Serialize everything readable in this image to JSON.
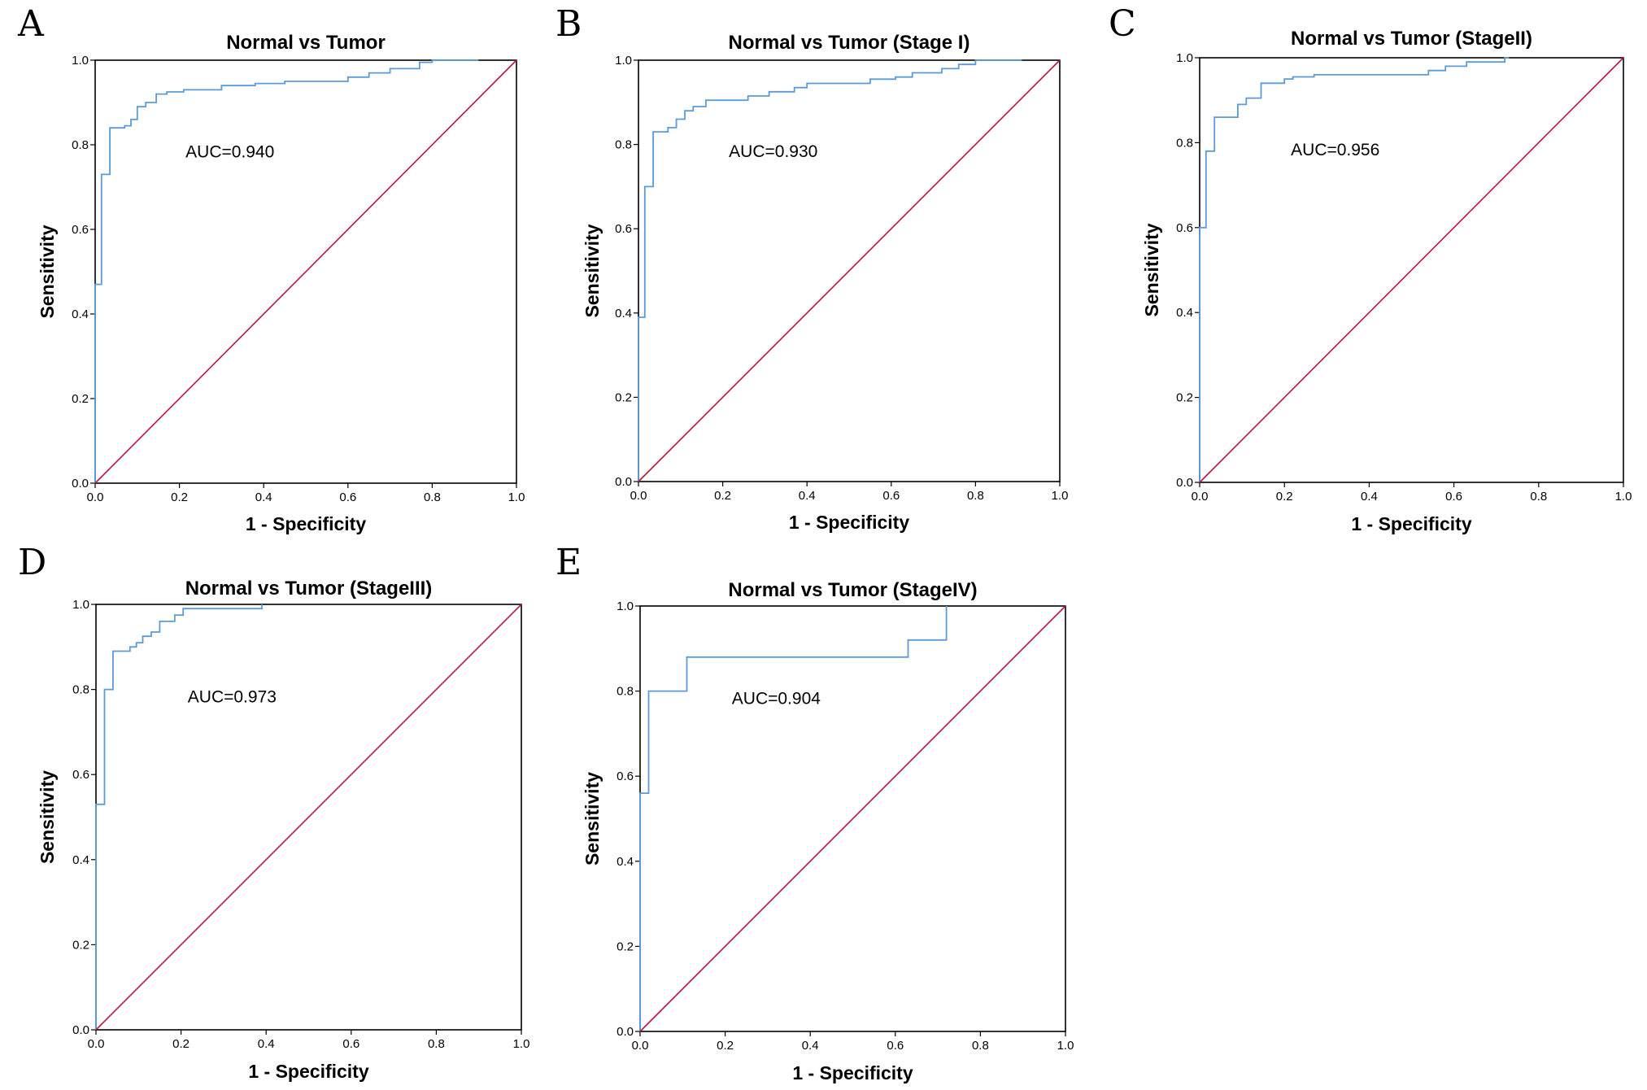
{
  "colors": {
    "roc": "#5b9bd5",
    "reference": "#c0143c",
    "frame": "#000000",
    "background": "#ffffff"
  },
  "chart_data": [
    {
      "panel": "A",
      "type": "line",
      "title": "Normal vs Tumor",
      "xlabel": "1 - Specificity",
      "ylabel": "Sensitivity",
      "xlim": [
        0,
        1
      ],
      "ylim": [
        0,
        1
      ],
      "xticks": [
        "0.0",
        "0.2",
        "0.4",
        "0.6",
        "0.8",
        "1.0"
      ],
      "yticks": [
        "0.0",
        "0.2",
        "0.4",
        "0.6",
        "0.8",
        "1.0"
      ],
      "annotation": "AUC=0.940",
      "grid": false,
      "series": [
        {
          "role": "roc",
          "points": [
            [
              0,
              0
            ],
            [
              0,
              0.47
            ],
            [
              0.015,
              0.47
            ],
            [
              0.015,
              0.73
            ],
            [
              0.035,
              0.73
            ],
            [
              0.035,
              0.84
            ],
            [
              0.07,
              0.84
            ],
            [
              0.07,
              0.845
            ],
            [
              0.085,
              0.845
            ],
            [
              0.085,
              0.86
            ],
            [
              0.1,
              0.86
            ],
            [
              0.1,
              0.89
            ],
            [
              0.12,
              0.89
            ],
            [
              0.12,
              0.9
            ],
            [
              0.145,
              0.9
            ],
            [
              0.145,
              0.92
            ],
            [
              0.17,
              0.92
            ],
            [
              0.17,
              0.925
            ],
            [
              0.21,
              0.925
            ],
            [
              0.21,
              0.93
            ],
            [
              0.3,
              0.93
            ],
            [
              0.3,
              0.94
            ],
            [
              0.38,
              0.94
            ],
            [
              0.38,
              0.945
            ],
            [
              0.45,
              0.945
            ],
            [
              0.45,
              0.95
            ],
            [
              0.6,
              0.95
            ],
            [
              0.6,
              0.96
            ],
            [
              0.65,
              0.96
            ],
            [
              0.65,
              0.97
            ],
            [
              0.7,
              0.97
            ],
            [
              0.7,
              0.98
            ],
            [
              0.77,
              0.98
            ],
            [
              0.77,
              0.995
            ],
            [
              0.8,
              0.995
            ],
            [
              0.8,
              1.0
            ],
            [
              0.91,
              1.0
            ]
          ]
        },
        {
          "role": "reference",
          "points": [
            [
              0,
              0
            ],
            [
              1,
              1
            ]
          ]
        }
      ]
    },
    {
      "panel": "B",
      "type": "line",
      "title": "Normal vs Tumor (Stage I)",
      "xlabel": "1 - Specificity",
      "ylabel": "Sensitivity",
      "xlim": [
        0,
        1
      ],
      "ylim": [
        0,
        1
      ],
      "xticks": [
        "0.0",
        "0.2",
        "0.4",
        "0.6",
        "0.8",
        "1.0"
      ],
      "yticks": [
        "0.0",
        "0.2",
        "0.4",
        "0.6",
        "0.8",
        "1.0"
      ],
      "annotation": "AUC=0.930",
      "grid": false,
      "series": [
        {
          "role": "roc",
          "points": [
            [
              0,
              0
            ],
            [
              0,
              0.39
            ],
            [
              0.015,
              0.39
            ],
            [
              0.015,
              0.7
            ],
            [
              0.035,
              0.7
            ],
            [
              0.035,
              0.83
            ],
            [
              0.07,
              0.83
            ],
            [
              0.07,
              0.84
            ],
            [
              0.09,
              0.84
            ],
            [
              0.09,
              0.86
            ],
            [
              0.11,
              0.86
            ],
            [
              0.11,
              0.88
            ],
            [
              0.13,
              0.88
            ],
            [
              0.13,
              0.89
            ],
            [
              0.16,
              0.89
            ],
            [
              0.16,
              0.905
            ],
            [
              0.26,
              0.905
            ],
            [
              0.26,
              0.915
            ],
            [
              0.31,
              0.915
            ],
            [
              0.31,
              0.925
            ],
            [
              0.37,
              0.925
            ],
            [
              0.37,
              0.935
            ],
            [
              0.4,
              0.935
            ],
            [
              0.4,
              0.945
            ],
            [
              0.55,
              0.945
            ],
            [
              0.55,
              0.955
            ],
            [
              0.61,
              0.955
            ],
            [
              0.61,
              0.96
            ],
            [
              0.65,
              0.96
            ],
            [
              0.65,
              0.97
            ],
            [
              0.72,
              0.97
            ],
            [
              0.72,
              0.98
            ],
            [
              0.76,
              0.98
            ],
            [
              0.76,
              0.99
            ],
            [
              0.8,
              0.99
            ],
            [
              0.8,
              1.0
            ],
            [
              0.91,
              1.0
            ]
          ]
        },
        {
          "role": "reference",
          "points": [
            [
              0,
              0
            ],
            [
              1,
              1
            ]
          ]
        }
      ]
    },
    {
      "panel": "C",
      "type": "line",
      "title": "Normal vs Tumor (StageII)",
      "xlabel": "1 - Specificity",
      "ylabel": "Sensitivity",
      "xlim": [
        0,
        1
      ],
      "ylim": [
        0,
        1
      ],
      "xticks": [
        "0.0",
        "0.2",
        "0.4",
        "0.6",
        "0.8",
        "1.0"
      ],
      "yticks": [
        "0.0",
        "0.2",
        "0.4",
        "0.6",
        "0.8",
        "1.0"
      ],
      "annotation": "AUC=0.956",
      "grid": false,
      "series": [
        {
          "role": "roc",
          "points": [
            [
              0,
              0
            ],
            [
              0,
              0.6
            ],
            [
              0.015,
              0.6
            ],
            [
              0.015,
              0.78
            ],
            [
              0.035,
              0.78
            ],
            [
              0.035,
              0.86
            ],
            [
              0.09,
              0.86
            ],
            [
              0.09,
              0.89
            ],
            [
              0.11,
              0.89
            ],
            [
              0.11,
              0.905
            ],
            [
              0.145,
              0.905
            ],
            [
              0.145,
              0.94
            ],
            [
              0.2,
              0.94
            ],
            [
              0.2,
              0.95
            ],
            [
              0.22,
              0.95
            ],
            [
              0.22,
              0.955
            ],
            [
              0.27,
              0.955
            ],
            [
              0.27,
              0.96
            ],
            [
              0.54,
              0.96
            ],
            [
              0.54,
              0.97
            ],
            [
              0.58,
              0.97
            ],
            [
              0.58,
              0.98
            ],
            [
              0.63,
              0.98
            ],
            [
              0.63,
              0.99
            ],
            [
              0.72,
              0.99
            ],
            [
              0.72,
              1.0
            ],
            [
              0.73,
              1.0
            ]
          ]
        },
        {
          "role": "reference",
          "points": [
            [
              0,
              0
            ],
            [
              1,
              1
            ]
          ]
        }
      ]
    },
    {
      "panel": "D",
      "type": "line",
      "title": "Normal vs Tumor (StageIII)",
      "xlabel": "1 - Specificity",
      "ylabel": "Sensitivity",
      "xlim": [
        0,
        1
      ],
      "ylim": [
        0,
        1
      ],
      "xticks": [
        "0.0",
        "0.2",
        "0.4",
        "0.6",
        "0.8",
        "1.0"
      ],
      "yticks": [
        "0.0",
        "0.2",
        "0.4",
        "0.6",
        "0.8",
        "1.0"
      ],
      "annotation": "AUC=0.973",
      "grid": false,
      "series": [
        {
          "role": "roc",
          "points": [
            [
              0,
              0
            ],
            [
              0,
              0.53
            ],
            [
              0.02,
              0.53
            ],
            [
              0.02,
              0.8
            ],
            [
              0.04,
              0.8
            ],
            [
              0.04,
              0.89
            ],
            [
              0.08,
              0.89
            ],
            [
              0.08,
              0.9
            ],
            [
              0.095,
              0.9
            ],
            [
              0.095,
              0.91
            ],
            [
              0.11,
              0.91
            ],
            [
              0.11,
              0.925
            ],
            [
              0.13,
              0.925
            ],
            [
              0.13,
              0.935
            ],
            [
              0.15,
              0.935
            ],
            [
              0.15,
              0.96
            ],
            [
              0.185,
              0.96
            ],
            [
              0.185,
              0.975
            ],
            [
              0.205,
              0.975
            ],
            [
              0.205,
              0.99
            ],
            [
              0.39,
              0.99
            ],
            [
              0.39,
              1.0
            ]
          ]
        },
        {
          "role": "reference",
          "points": [
            [
              0,
              0
            ],
            [
              1,
              1
            ]
          ]
        }
      ]
    },
    {
      "panel": "E",
      "type": "line",
      "title": "Normal vs Tumor (StageIV)",
      "xlabel": "1 - Specificity",
      "ylabel": "Sensitivity",
      "xlim": [
        0,
        1
      ],
      "ylim": [
        0,
        1
      ],
      "xticks": [
        "0.0",
        "0.2",
        "0.4",
        "0.6",
        "0.8",
        "1.0"
      ],
      "yticks": [
        "0.0",
        "0.2",
        "0.4",
        "0.6",
        "0.8",
        "1.0"
      ],
      "annotation": "AUC=0.904",
      "grid": false,
      "series": [
        {
          "role": "roc",
          "points": [
            [
              0,
              0
            ],
            [
              0,
              0.56
            ],
            [
              0.02,
              0.56
            ],
            [
              0.02,
              0.8
            ],
            [
              0.11,
              0.8
            ],
            [
              0.11,
              0.88
            ],
            [
              0.63,
              0.88
            ],
            [
              0.63,
              0.92
            ],
            [
              0.72,
              0.92
            ],
            [
              0.72,
              1.0
            ]
          ]
        },
        {
          "role": "reference",
          "points": [
            [
              0,
              0
            ],
            [
              1,
              1
            ]
          ]
        }
      ]
    }
  ]
}
